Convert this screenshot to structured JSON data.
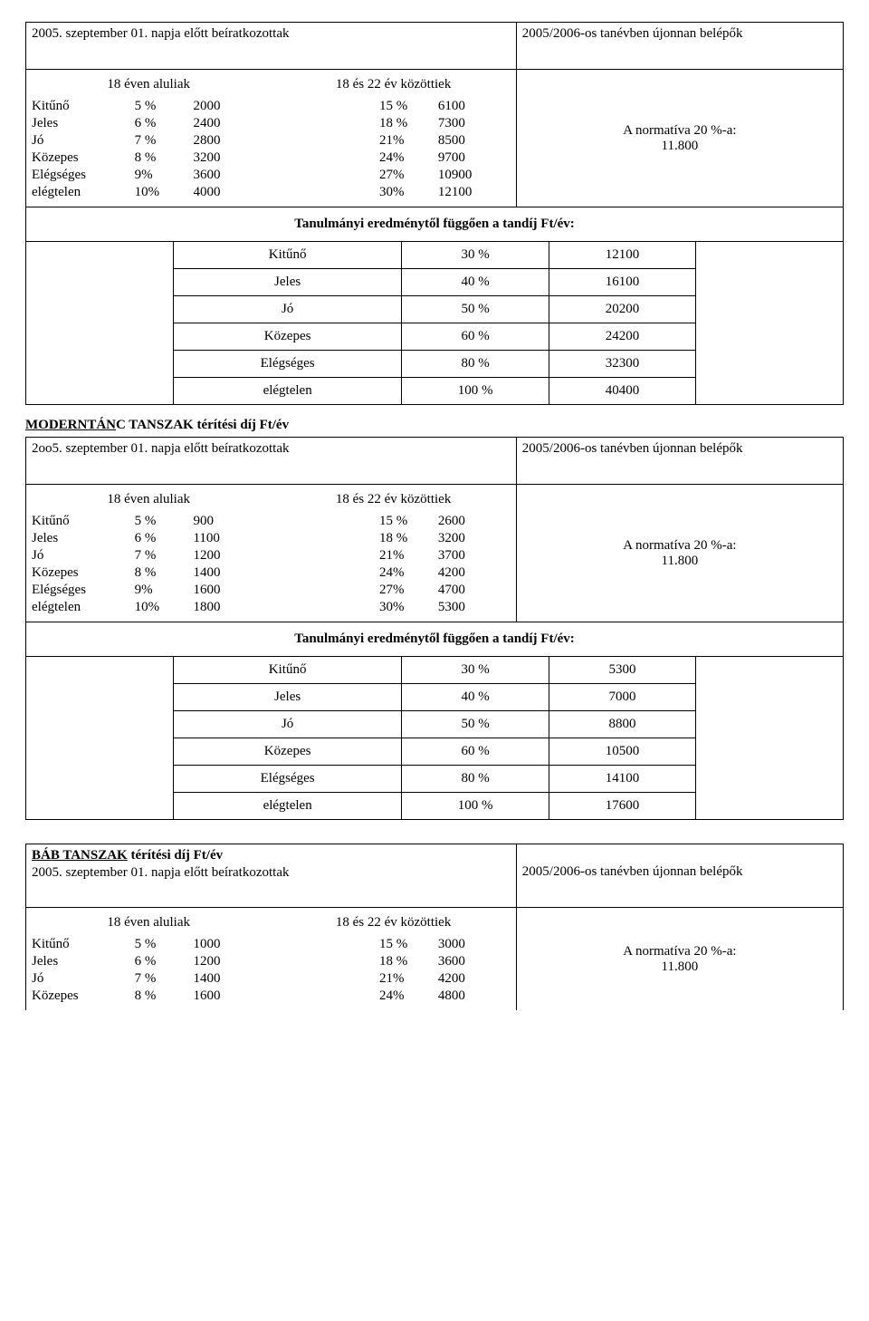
{
  "labels": {
    "under18": "18 éven aluliak",
    "between18_22": "18 és 22 év közöttiek",
    "normativa": "A normatíva 20 %-a:",
    "norm_value": "11.800",
    "tandij_title": "Tanulmányi eredménytől függően a tandíj Ft/év:",
    "header_pre": "2005. szeptember 01. napja előtt beíratkozottak",
    "header_pre2": "2oo5. szeptember 01. napja előtt beíratkozottak",
    "header_new": "2005/2006-os tanévben újonnan belépők"
  },
  "grades": [
    "Kitűnő",
    "Jeles",
    "Jó",
    "Közepes",
    "Elégséges",
    "elégtelen"
  ],
  "pct_left": [
    "5 %",
    "6 %",
    "7 %",
    "8 %",
    "9%",
    "10%"
  ],
  "pct_right": [
    "15 %",
    "18 %",
    "21%",
    "24%",
    "27%",
    "30%"
  ],
  "tandij_pct": [
    "30 %",
    "40 %",
    "50 %",
    "60 %",
    "80 %",
    "100 %"
  ],
  "block1": {
    "left_vals": [
      "2000",
      "2400",
      "2800",
      "3200",
      "3600",
      "4000"
    ],
    "right_vals": [
      "6100",
      "7300",
      "8500",
      "9700",
      "10900",
      "12100"
    ],
    "tandij_vals": [
      "12100",
      "16100",
      "20200",
      "24200",
      "32300",
      "40400"
    ]
  },
  "modern": {
    "title_u": "MODERNTÁN",
    "title_rest": "C TANSZAK térítési díj Ft/év",
    "left_vals": [
      "900",
      "1100",
      "1200",
      "1400",
      "1600",
      "1800"
    ],
    "right_vals": [
      "2600",
      "3200",
      "3700",
      "4200",
      "4700",
      "5300"
    ],
    "tandij_vals": [
      "5300",
      "7000",
      "8800",
      "10500",
      "14100",
      "17600"
    ]
  },
  "bab": {
    "title_u": "BÁB TANSZAK",
    "title_rest": " térítési díj Ft/év",
    "left_vals": [
      "1000",
      "1200",
      "1400",
      "1600"
    ],
    "right_vals": [
      "3000",
      "3600",
      "4200",
      "4800"
    ],
    "rows": 4
  }
}
